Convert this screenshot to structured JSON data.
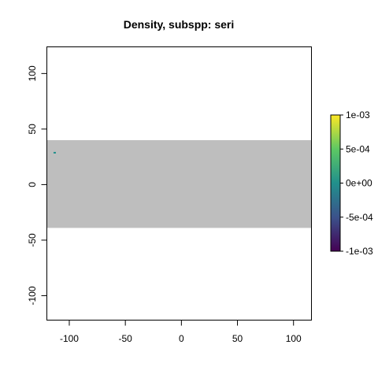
{
  "chart_data": {
    "type": "heatmap",
    "title": "Density, subspp: seri",
    "xlabel": "",
    "ylabel": "",
    "xlim": [
      -120,
      116
    ],
    "ylim": [
      -122,
      124
    ],
    "x_ticks": [
      -100,
      -50,
      0,
      50,
      100
    ],
    "x_tick_labels": [
      "-100",
      "-50",
      "0",
      "50",
      "100"
    ],
    "y_ticks": [
      -100,
      -50,
      0,
      50,
      100
    ],
    "y_tick_labels": [
      "-100",
      "-50",
      "0",
      "50",
      "100"
    ],
    "raster_extent": {
      "xmin": -120,
      "xmax": 116,
      "ymin": -39,
      "ymax": 40
    },
    "raster_fill_color": "#bebebe",
    "cells": [
      {
        "x": -113,
        "y": 28.7,
        "value": 0.0,
        "color": "#21908c"
      }
    ],
    "colorbar": {
      "range": [
        -0.001,
        0.001
      ],
      "ticks": [
        0.001,
        0.0005,
        0,
        -0.0005,
        -0.001
      ],
      "tick_labels": [
        "1e-03",
        "5e-04",
        "0e+00",
        "-5e-04",
        "-1e-03"
      ],
      "palette": "viridis",
      "colors": [
        "#440154",
        "#3b528b",
        "#21908c",
        "#5dc863",
        "#fde725"
      ]
    },
    "grid": false,
    "legend_position": "right"
  }
}
